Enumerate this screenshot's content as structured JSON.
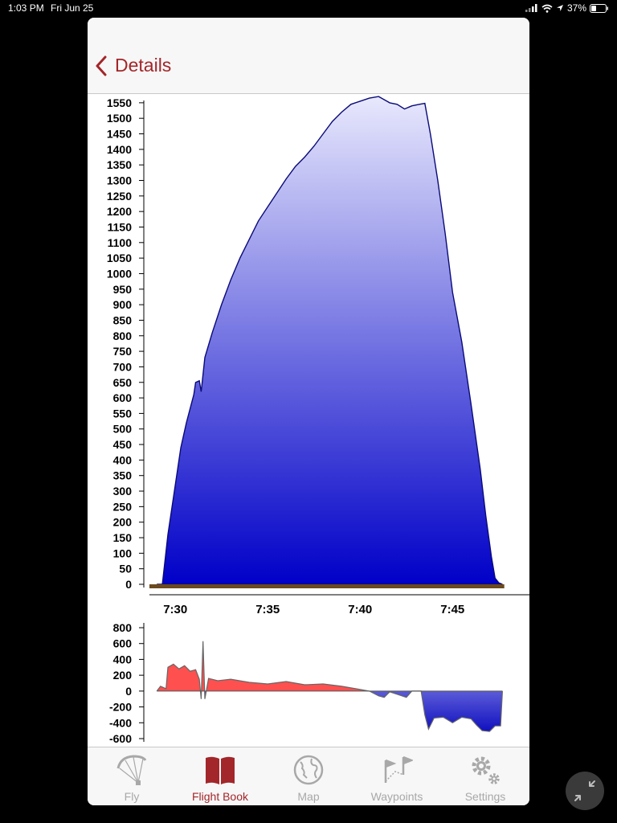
{
  "status_bar": {
    "time": "1:03 PM",
    "date": "Fri Jun 25",
    "battery": "37%"
  },
  "nav": {
    "back_label": "Details"
  },
  "chart_data": [
    {
      "type": "area",
      "ylim": [
        0,
        1560
      ],
      "y_ticks": [
        0,
        50,
        100,
        150,
        200,
        250,
        300,
        350,
        400,
        450,
        500,
        550,
        600,
        650,
        700,
        750,
        800,
        850,
        900,
        950,
        1000,
        1050,
        1100,
        1150,
        1200,
        1250,
        1300,
        1350,
        1400,
        1450,
        1500,
        1550
      ],
      "x_ticks": [
        "7:30",
        "7:35",
        "7:40",
        "7:45"
      ],
      "x_tick_minutes": [
        30,
        35,
        40,
        45
      ],
      "xlim_minutes": [
        28.6,
        48.9
      ],
      "series": [
        {
          "values": [
            [
              29.0,
              0
            ],
            [
              29.3,
              0
            ],
            [
              29.6,
              160
            ],
            [
              30.0,
              320
            ],
            [
              30.3,
              440
            ],
            [
              30.6,
              520
            ],
            [
              31.0,
              610
            ],
            [
              31.1,
              650
            ],
            [
              31.3,
              655
            ],
            [
              31.4,
              620
            ],
            [
              31.6,
              730
            ],
            [
              32.0,
              810
            ],
            [
              32.5,
              900
            ],
            [
              33.0,
              980
            ],
            [
              33.5,
              1050
            ],
            [
              34.0,
              1110
            ],
            [
              34.5,
              1170
            ],
            [
              35.0,
              1215
            ],
            [
              35.5,
              1260
            ],
            [
              36.0,
              1305
            ],
            [
              36.5,
              1345
            ],
            [
              37.0,
              1375
            ],
            [
              37.5,
              1410
            ],
            [
              38.0,
              1450
            ],
            [
              38.5,
              1490
            ],
            [
              39.0,
              1520
            ],
            [
              39.5,
              1545
            ],
            [
              40.0,
              1555
            ],
            [
              40.5,
              1565
            ],
            [
              41.0,
              1570
            ],
            [
              41.3,
              1560
            ],
            [
              41.6,
              1550
            ],
            [
              42.0,
              1545
            ],
            [
              42.4,
              1530
            ],
            [
              42.8,
              1540
            ],
            [
              43.2,
              1545
            ],
            [
              43.5,
              1548
            ],
            [
              43.8,
              1450
            ],
            [
              44.2,
              1300
            ],
            [
              44.6,
              1130
            ],
            [
              45.0,
              940
            ],
            [
              45.5,
              780
            ],
            [
              46.0,
              580
            ],
            [
              46.5,
              370
            ],
            [
              46.8,
              220
            ],
            [
              47.1,
              90
            ],
            [
              47.3,
              20
            ],
            [
              47.5,
              5
            ],
            [
              47.7,
              0
            ]
          ]
        }
      ]
    },
    {
      "type": "area",
      "ylim": [
        -600,
        800
      ],
      "y_ticks": [
        800,
        600,
        400,
        200,
        0,
        -200,
        -400,
        -600
      ],
      "xlim_minutes": [
        28.6,
        48.9
      ],
      "series": [
        {
          "values": [
            [
              29.0,
              0
            ],
            [
              29.2,
              60
            ],
            [
              29.5,
              30
            ],
            [
              29.6,
              300
            ],
            [
              29.9,
              340
            ],
            [
              30.2,
              280
            ],
            [
              30.5,
              320
            ],
            [
              30.8,
              250
            ],
            [
              31.1,
              270
            ],
            [
              31.3,
              150
            ],
            [
              31.4,
              -100
            ],
            [
              31.5,
              630
            ],
            [
              31.6,
              -100
            ],
            [
              31.8,
              160
            ],
            [
              32.3,
              130
            ],
            [
              33.0,
              150
            ],
            [
              34.0,
              110
            ],
            [
              35.0,
              90
            ],
            [
              36.0,
              120
            ],
            [
              37.0,
              80
            ],
            [
              38.0,
              90
            ],
            [
              39.0,
              60
            ],
            [
              39.5,
              40
            ],
            [
              40.0,
              20
            ],
            [
              40.5,
              0
            ],
            [
              41.0,
              -60
            ],
            [
              41.3,
              -80
            ],
            [
              41.6,
              -10
            ],
            [
              42.0,
              -40
            ],
            [
              42.5,
              -80
            ],
            [
              42.8,
              0
            ],
            [
              43.3,
              0
            ],
            [
              43.5,
              -300
            ],
            [
              43.7,
              -480
            ],
            [
              44.0,
              -340
            ],
            [
              44.5,
              -330
            ],
            [
              45.0,
              -400
            ],
            [
              45.5,
              -330
            ],
            [
              46.0,
              -350
            ],
            [
              46.3,
              -430
            ],
            [
              46.6,
              -500
            ],
            [
              47.0,
              -510
            ],
            [
              47.3,
              -440
            ],
            [
              47.6,
              -440
            ],
            [
              47.7,
              0
            ]
          ]
        }
      ]
    }
  ],
  "tabs": [
    {
      "label": "Fly"
    },
    {
      "label": "Flight Book"
    },
    {
      "label": "Map"
    },
    {
      "label": "Waypoints"
    },
    {
      "label": "Settings"
    }
  ],
  "colors": {
    "accent": "#a3262a",
    "inactive": "#a8a8a8",
    "climb": "#ff5050",
    "sink": "#1010c8",
    "ground": "#6b4a1e"
  }
}
